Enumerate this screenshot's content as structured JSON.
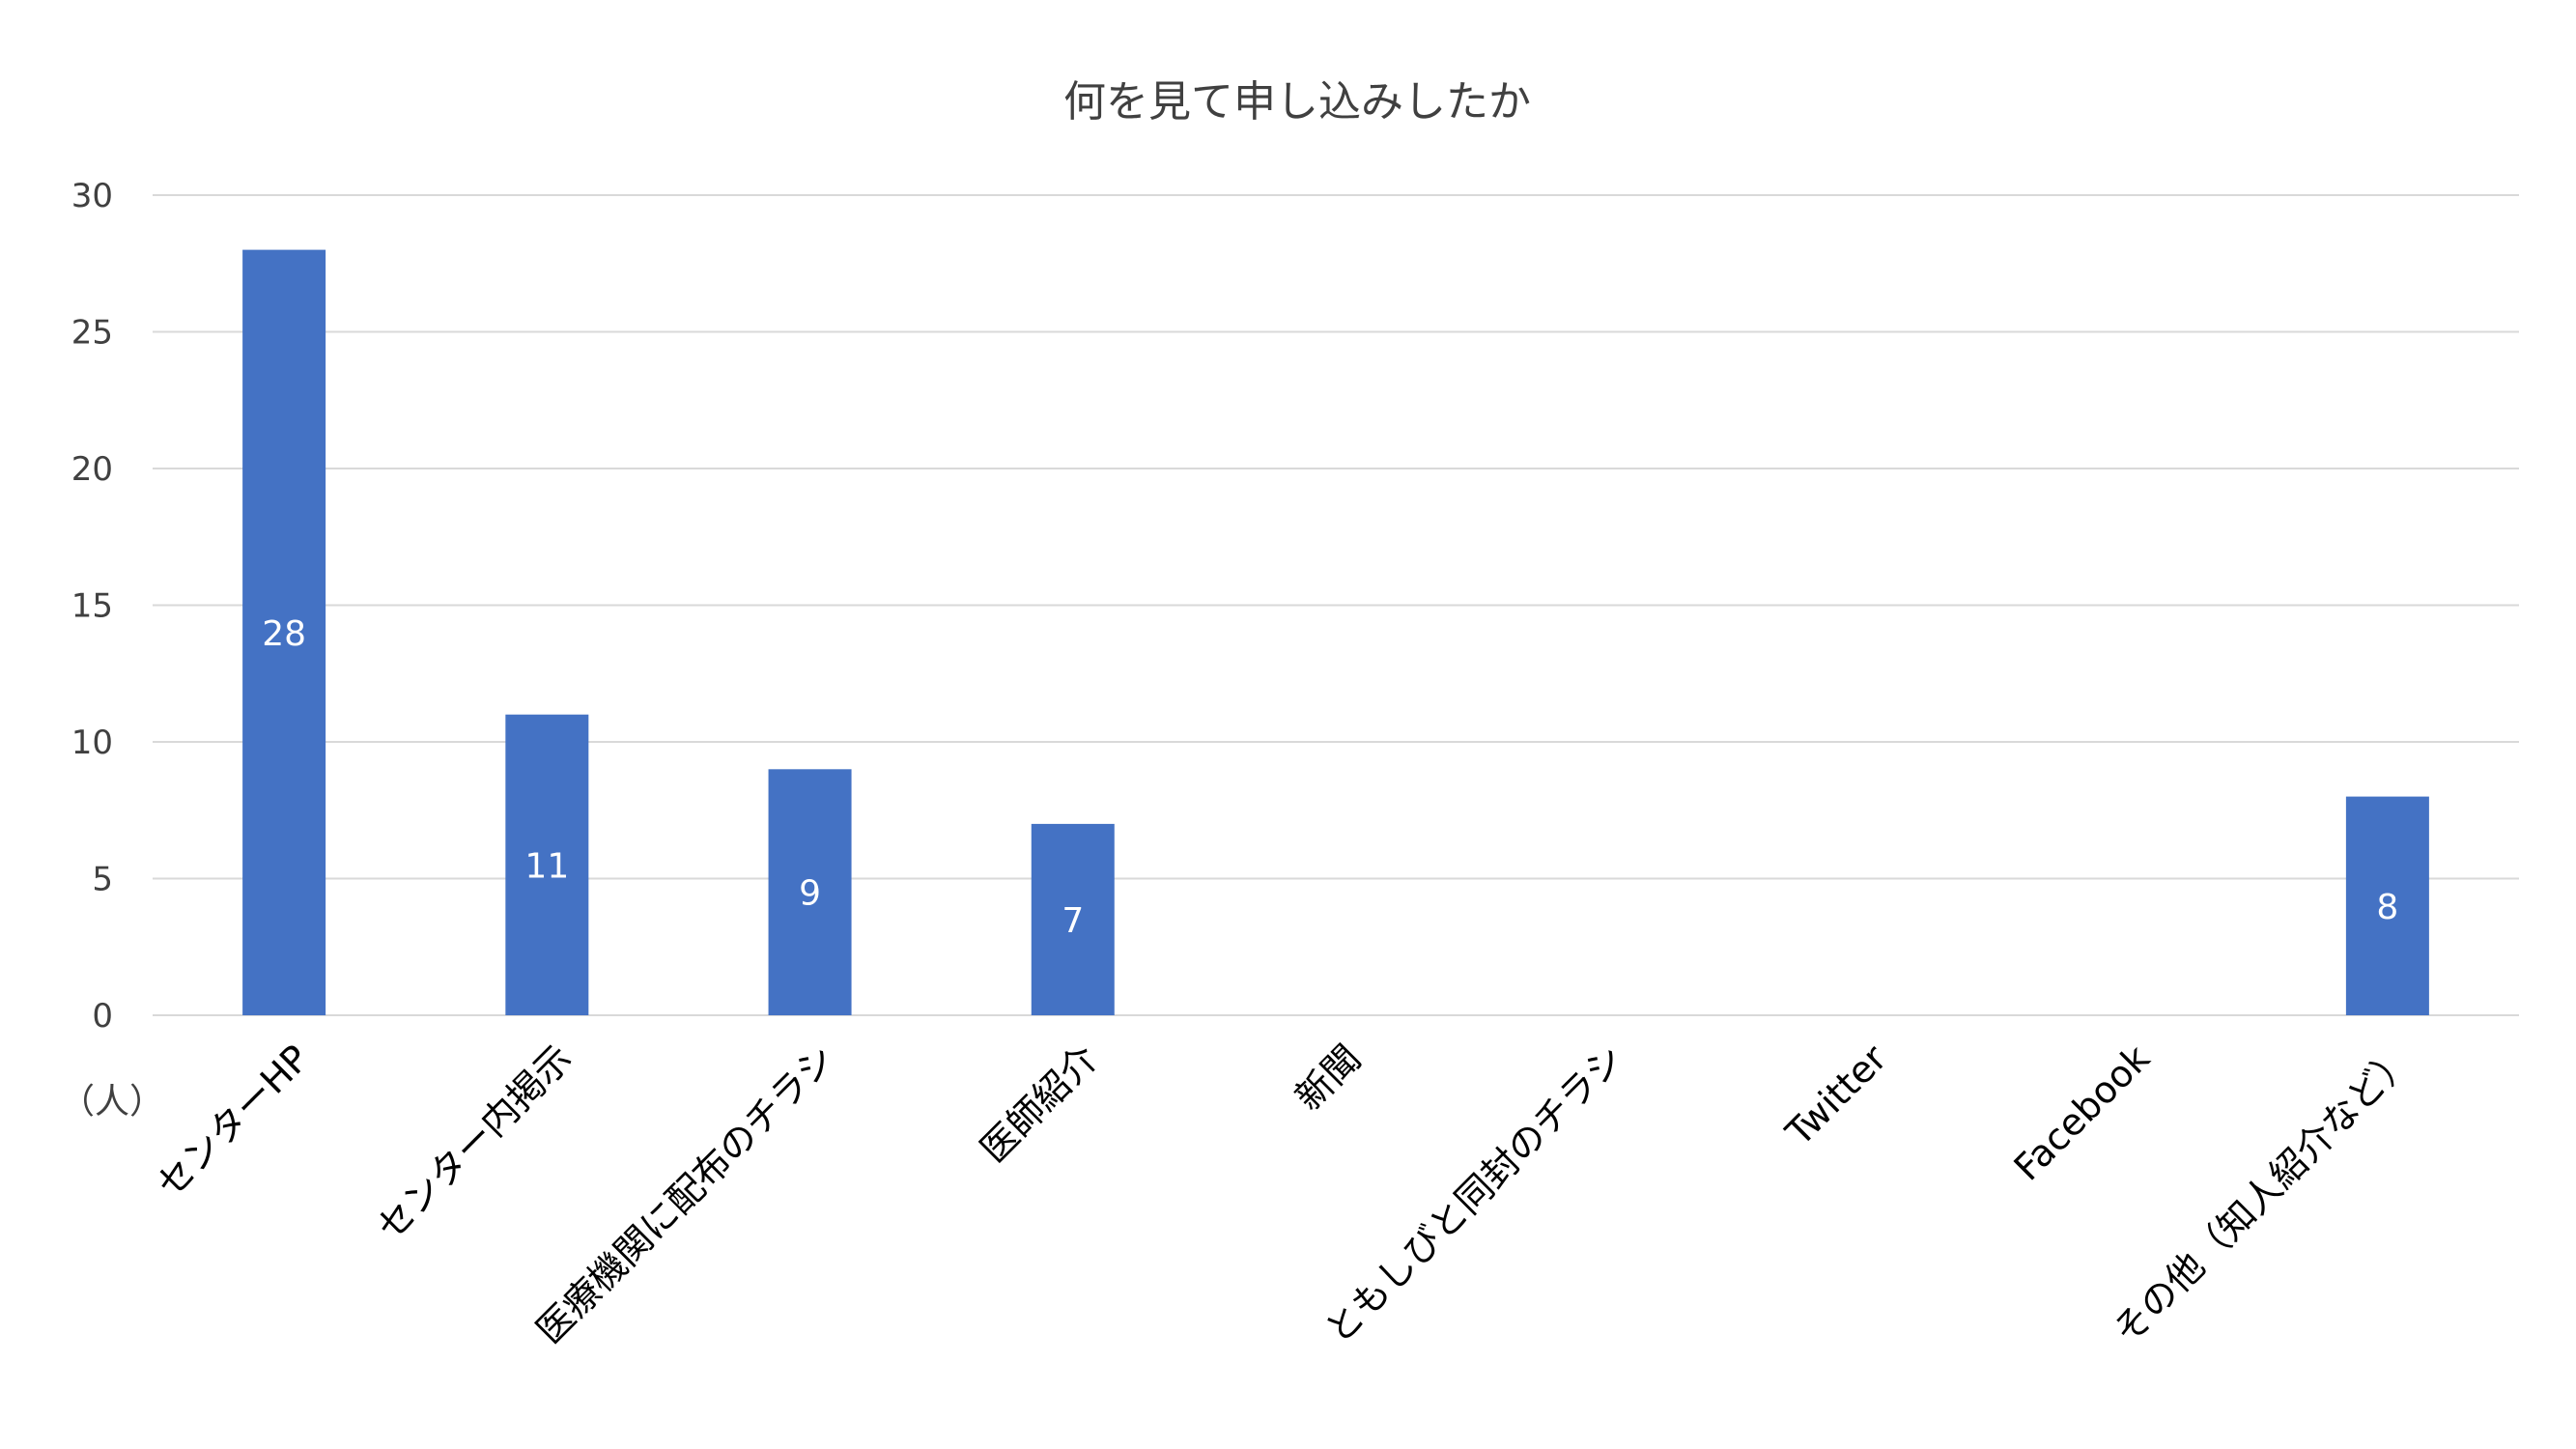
{
  "chart_data": {
    "type": "bar",
    "title": "何を見て申し込みしたか",
    "ylabel": "",
    "xlabel": "",
    "unit_label": "（人）",
    "categories": [
      "センターHP",
      "センター内掲示",
      "医療機関に配布のチラシ",
      "医師紹介",
      "新聞",
      "ともしびと同封のチラシ",
      "Twitter",
      "Facebook",
      "その他（知人紹介など）"
    ],
    "values": [
      28,
      11,
      9,
      7,
      0,
      0,
      0,
      0,
      8
    ],
    "data_labels": [
      "28",
      "11",
      "9",
      "7",
      "",
      "",
      "",
      "",
      "8"
    ],
    "ylim": [
      0,
      30
    ],
    "yticks": [
      0,
      5,
      10,
      15,
      20,
      25,
      30
    ],
    "grid": true,
    "legend": "none",
    "colors": {
      "bar": "#4472c4",
      "grid": "#d9d9d9",
      "label": "#ffffff"
    }
  }
}
